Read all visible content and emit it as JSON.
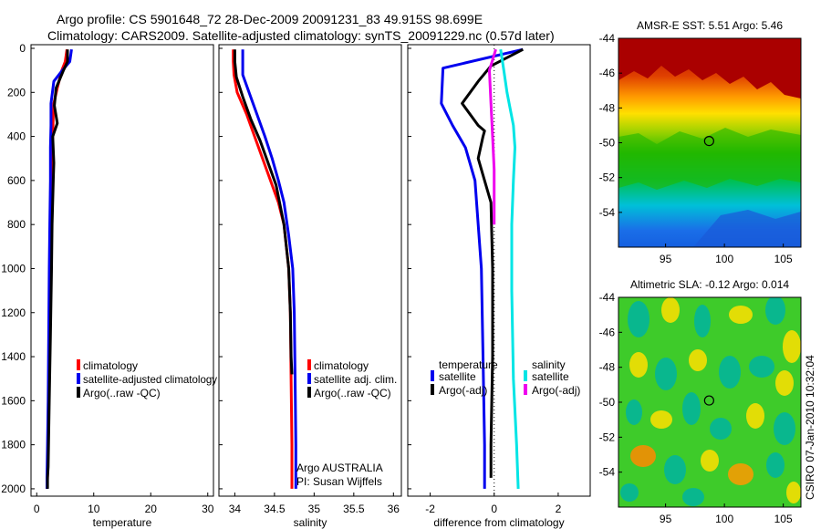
{
  "title_line1": "Argo profile: CS 5901648_72 28-Dec-2009 20091231_83 49.915S 98.699E",
  "title_line2": "Climatology: CARS2009. Satellite-adjusted climatology: synTS_20091229.nc (0.57d later)",
  "side_label": "CSIRO 07-Jan-2010 10:32:04",
  "colors": {
    "climatology": "#ff0000",
    "satellite": "#0000ee",
    "argo": "#000000",
    "sat_salinity": "#00e5e5",
    "argo_salinity": "#ee00ee"
  },
  "chart_data": [
    {
      "type": "line",
      "name": "temperature-panel",
      "xlabel": "temperature",
      "xlim": [
        -1,
        31
      ],
      "ylim": [
        0,
        2050
      ],
      "y_reversed": true,
      "xticks": [
        0,
        10,
        20,
        30
      ],
      "xtick_labels": [
        "0",
        "10",
        "20",
        "30"
      ],
      "yticks": [
        0,
        200,
        400,
        600,
        800,
        1000,
        1200,
        1400,
        1600,
        1800,
        2000
      ],
      "ytick_labels": [
        "0",
        "200",
        "400",
        "600",
        "800",
        "1000",
        "1200",
        "1400",
        "1600",
        "1800",
        "2000"
      ],
      "legend": [
        "climatology",
        "satellite-adjusted climatology",
        "Argo(..raw -QC)"
      ],
      "series": [
        {
          "name": "climatology",
          "color": "red",
          "x": [
            5.3,
            5.0,
            4.4,
            3.6,
            3.0,
            2.9,
            2.8,
            2.6,
            2.5,
            2.4,
            2.3,
            2.2,
            2.1,
            2.0,
            1.95,
            1.9,
            1.8
          ],
          "y": [
            5,
            60,
            100,
            180,
            250,
            300,
            400,
            550,
            700,
            900,
            1100,
            1300,
            1500,
            1700,
            1850,
            1950,
            2000
          ]
        },
        {
          "name": "satellite",
          "color": "blue",
          "x": [
            6.1,
            5.8,
            4.5,
            3.0,
            2.5,
            2.5,
            2.4,
            2.4,
            2.3,
            2.2,
            2.1,
            2.0,
            1.9,
            1.8,
            1.8
          ],
          "y": [
            5,
            60,
            100,
            150,
            250,
            350,
            450,
            600,
            800,
            1000,
            1300,
            1600,
            1800,
            1950,
            2000
          ]
        },
        {
          "name": "argo",
          "color": "black",
          "x": [
            5.4,
            5.4,
            4.7,
            3.4,
            3.1,
            3.6,
            2.8,
            3.0,
            2.9,
            2.7,
            2.6,
            2.4,
            2.2,
            2.0,
            1.9,
            1.9
          ],
          "y": [
            5,
            60,
            100,
            180,
            260,
            340,
            400,
            520,
            600,
            800,
            1000,
            1300,
            1600,
            1900,
            1950,
            2000
          ]
        }
      ]
    },
    {
      "type": "line",
      "name": "salinity-panel",
      "xlabel": "salinity",
      "xlim": [
        33.8,
        36.1
      ],
      "ylim": [
        0,
        2050
      ],
      "y_reversed": true,
      "xticks": [
        34,
        34.5,
        35,
        35.5,
        36
      ],
      "xtick_labels": [
        "34",
        "34.5",
        "35",
        "35.5",
        "36"
      ],
      "legend": [
        "climatology",
        "satellite adj. clim.",
        "Argo(..raw -QC)"
      ],
      "annotations": [
        "Argo AUSTRALIA",
        "PI: Susan Wijffels"
      ],
      "series": [
        {
          "name": "climatology",
          "color": "red",
          "x": [
            33.98,
            33.98,
            33.99,
            34.03,
            34.15,
            34.25,
            34.35,
            34.45,
            34.55,
            34.62,
            34.68,
            34.7,
            34.71,
            34.72,
            34.72
          ],
          "y": [
            5,
            60,
            120,
            200,
            300,
            400,
            500,
            600,
            700,
            800,
            1000,
            1200,
            1500,
            1800,
            2000
          ]
        },
        {
          "name": "satellite",
          "color": "blue",
          "x": [
            34.1,
            34.1,
            34.1,
            34.18,
            34.28,
            34.38,
            34.47,
            34.55,
            34.62,
            34.68,
            34.73,
            34.75,
            34.76,
            34.77,
            34.77
          ],
          "y": [
            5,
            60,
            120,
            200,
            300,
            400,
            500,
            600,
            700,
            850,
            1000,
            1200,
            1500,
            1800,
            2000
          ]
        },
        {
          "name": "argo",
          "color": "black",
          "x": [
            34.0,
            34.0,
            34.02,
            34.1,
            34.2,
            34.32,
            34.42,
            34.52,
            34.62,
            34.68,
            34.7,
            34.71,
            34.72
          ],
          "y": [
            5,
            60,
            130,
            220,
            320,
            420,
            520,
            620,
            800,
            1000,
            1200,
            1400,
            1480
          ]
        }
      ]
    },
    {
      "type": "line",
      "name": "difference-panel",
      "xlabel": "difference from climatology",
      "xlim": [
        -2.7,
        3.0
      ],
      "ylim": [
        0,
        2050
      ],
      "y_reversed": true,
      "xticks": [
        -2,
        0,
        2
      ],
      "xtick_labels": [
        "-2",
        "0",
        "2"
      ],
      "legend": [
        "temperature",
        "satellite",
        "Argo(-adj)",
        "salinity",
        "satellite",
        "Argo(-adj)"
      ],
      "series": [
        {
          "name": "temperature satellite",
          "color": "blue",
          "x": [
            0.9,
            -1.6,
            -1.65,
            -1.3,
            -0.9,
            -0.6,
            -0.5,
            -0.4,
            -0.35,
            -0.3,
            -0.3
          ],
          "y": [
            5,
            90,
            250,
            350,
            450,
            600,
            800,
            1000,
            1400,
            1800,
            2000
          ]
        },
        {
          "name": "temperature argo",
          "color": "black",
          "x": [
            0.9,
            -0.1,
            -0.5,
            -1.0,
            -0.5,
            -0.3,
            -0.35,
            -0.5,
            -0.3,
            -0.1,
            -0.05,
            -0.05,
            -0.1,
            -0.1
          ],
          "y": [
            5,
            80,
            150,
            250,
            350,
            375,
            400,
            500,
            600,
            700,
            1000,
            1400,
            1800,
            1950
          ]
        },
        {
          "name": "salinity satellite",
          "color": "cyan",
          "x": [
            0.2,
            0.3,
            0.4,
            0.6,
            0.65,
            0.6,
            0.55,
            0.55,
            0.6,
            0.7,
            0.75
          ],
          "y": [
            5,
            100,
            200,
            350,
            450,
            600,
            800,
            1100,
            1500,
            1800,
            2000
          ]
        },
        {
          "name": "salinity argo",
          "color": "magenta",
          "x": [
            0.05,
            -0.15,
            -0.1,
            -0.05,
            0.0,
            0.0,
            0.0
          ],
          "y": [
            5,
            100,
            250,
            400,
            550,
            700,
            800
          ]
        }
      ]
    },
    {
      "type": "heatmap",
      "name": "amsre-sst-map",
      "title": "AMSR-E SST: 5.51  Argo: 5.46",
      "xticks": [
        95,
        100,
        105
      ],
      "xtick_labels": [
        "95",
        "100",
        "105"
      ],
      "yticks": [
        -44,
        -46,
        -48,
        -50,
        -52,
        -54
      ],
      "ytick_labels": [
        "-44",
        "-46",
        "-48",
        "-50",
        "-52",
        "-54"
      ],
      "xlim": [
        91,
        106.5
      ],
      "ylim": [
        -56,
        -44
      ],
      "marker": [
        98.7,
        -49.9
      ]
    },
    {
      "type": "heatmap",
      "name": "altimetric-sla-map",
      "title": "Altimetric SLA: -0.12  Argo: 0.014",
      "xticks": [
        95,
        100,
        105
      ],
      "xtick_labels": [
        "95",
        "100",
        "105"
      ],
      "yticks": [
        -44,
        -46,
        -48,
        -50,
        -52,
        -54
      ],
      "ytick_labels": [
        "-44",
        "-46",
        "-48",
        "-50",
        "-52",
        "-54"
      ],
      "xlim": [
        91,
        106.5
      ],
      "ylim": [
        -56,
        -44
      ],
      "marker": [
        98.7,
        -49.9
      ]
    }
  ]
}
